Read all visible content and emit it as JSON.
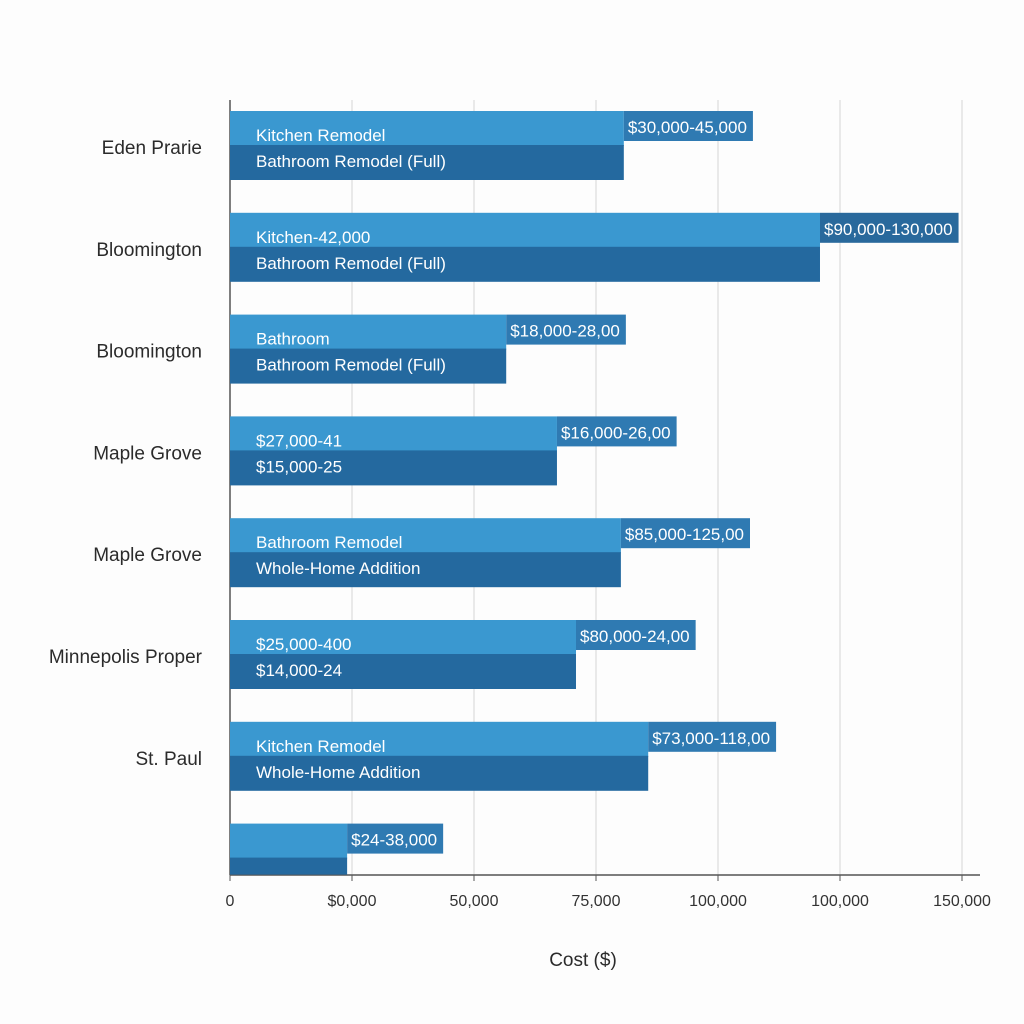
{
  "chart_data": {
    "type": "bar",
    "orientation": "horizontal",
    "title": "",
    "xlabel": "Cost ($)",
    "ylabel": "",
    "xlim": [
      0,
      150000
    ],
    "grid": true,
    "x_tick_labels": [
      "0",
      "$0,000",
      "50,000",
      "75,000",
      "100,000",
      "100,000",
      "150,000"
    ],
    "colors": {
      "upper_bar": "#3a98d0",
      "lower_bar": "#24699f",
      "label_box": "#2f7ab2",
      "grid": "#dcdcdc",
      "axis": "#555555"
    },
    "categories": [
      {
        "label": "Eden Prarie",
        "upper_text": "Kitchen Remodel",
        "lower_text": "Bathroom Remodel (Full)",
        "range_label": "$30,000-45,000",
        "value": 80700
      },
      {
        "label": "Bloomington",
        "upper_text": "Kitchen-42,000",
        "lower_text": "Bathroom Remodel (Full)",
        "range_label": "$90,000-130,000",
        "value": 120900
      },
      {
        "label": "Bloomington",
        "upper_text": "Bathroom",
        "lower_text": "Bathroom Remodel (Full)",
        "range_label": "$18,000-28,00",
        "value": 56600
      },
      {
        "label": "Maple Grove",
        "upper_text": "$27,000-41",
        "lower_text": "$15,000-25",
        "range_label": "$16,000-26,00",
        "value": 67000
      },
      {
        "label": "Maple Grove",
        "upper_text": "Bathroom Remodel",
        "lower_text": "Whole-Home Addition",
        "range_label": "$85,000-125,00",
        "value": 80100
      },
      {
        "label": "Minnepolis Proper",
        "upper_text": "$25,000-400",
        "lower_text": "$14,000-24",
        "range_label": "$80,000-24,00",
        "value": 70900
      },
      {
        "label": "St. Paul",
        "upper_text": "Kitchen Remodel",
        "lower_text": "Whole-Home Addition",
        "range_label": "$73,000-118,00",
        "value": 85700
      },
      {
        "label": "",
        "upper_text": "",
        "lower_text": "",
        "range_label": "$24-38,000",
        "value": 24000
      }
    ]
  }
}
